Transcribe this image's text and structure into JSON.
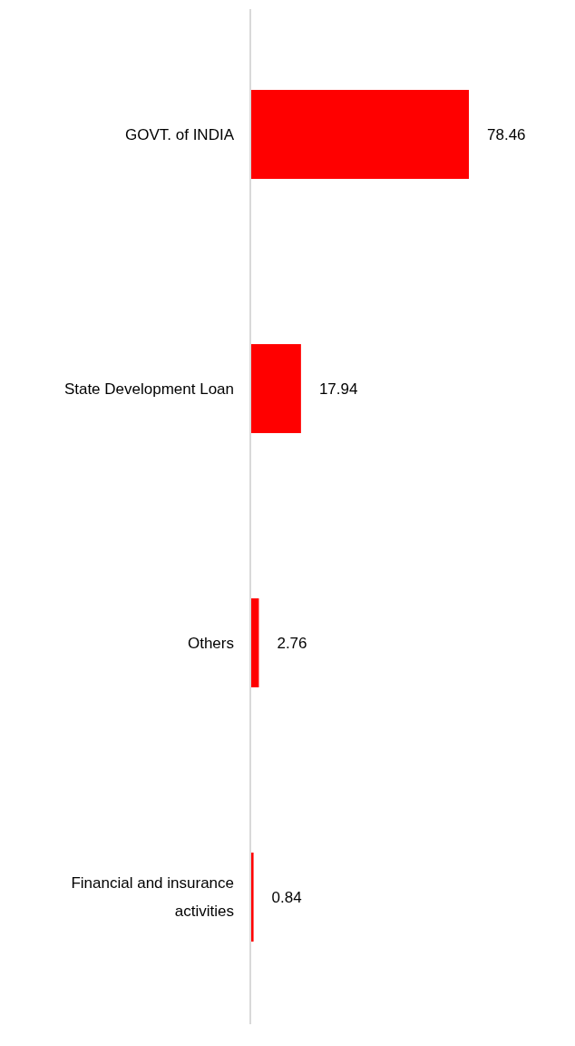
{
  "chart_data": {
    "type": "bar",
    "orientation": "horizontal",
    "categories": [
      "GOVT. of INDIA",
      "State Development Loan",
      "Others",
      "Financial and insurance activities"
    ],
    "values": [
      78.46,
      17.94,
      2.76,
      0.84
    ],
    "color": "#ff0000",
    "data_labels": true
  }
}
